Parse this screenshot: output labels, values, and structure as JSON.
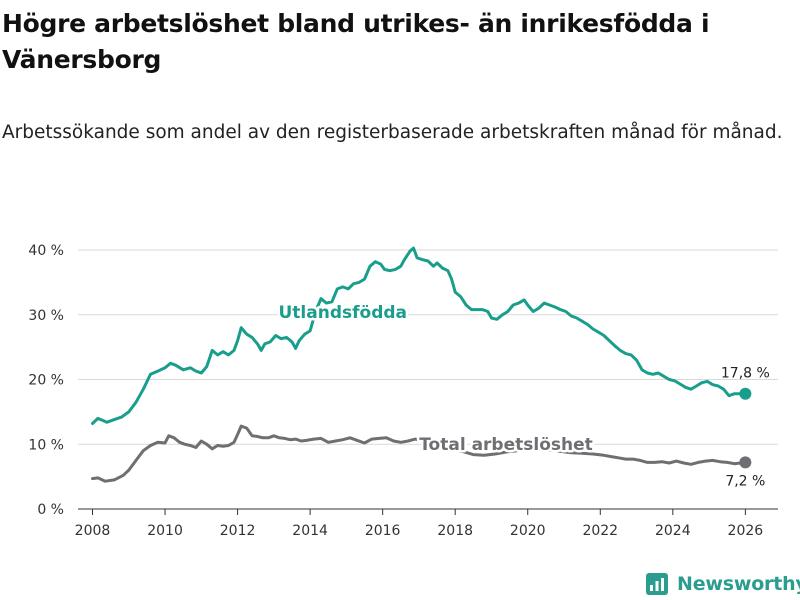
{
  "header": {
    "title": "Högre arbetslöshet bland utrikes- än inrikesfödda i Vänersborg",
    "subtitle": "Arbetssökande som andel av den registerbaserade arbetskraften månad för månad."
  },
  "brand": {
    "name": "Newsworthy",
    "icon": "newsworthy-logo-icon",
    "color": "#2a9d8f"
  },
  "chart_data": {
    "type": "line",
    "title": "Högre arbetslöshet bland utrikes- än inrikesfödda i Vänersborg",
    "subtitle": "Arbetssökande som andel av den registerbaserade arbetskraften månad för månad.",
    "xlabel": "",
    "ylabel": "",
    "xlim": [
      2007.6,
      2026.9
    ],
    "ylim": [
      0,
      40
    ],
    "grid": true,
    "y_ticks": [
      0,
      10,
      20,
      30,
      40
    ],
    "y_tick_labels": [
      "0 %",
      "10 %",
      "20 %",
      "30 %",
      "40 %"
    ],
    "x_ticks": [
      2008,
      2010,
      2012,
      2014,
      2016,
      2018,
      2020,
      2022,
      2024,
      2026
    ],
    "x_tick_labels": [
      "2008",
      "2010",
      "2012",
      "2014",
      "2016",
      "2018",
      "2020",
      "2022",
      "2024",
      "2026"
    ],
    "series": [
      {
        "name": "Utlandsfödda",
        "color": "#1a9e8c",
        "end_label": "17,8 %",
        "points": [
          [
            2008.0,
            13.2
          ],
          [
            2008.15,
            14.0
          ],
          [
            2008.4,
            13.4
          ],
          [
            2008.6,
            13.8
          ],
          [
            2008.8,
            14.2
          ],
          [
            2009.0,
            15.0
          ],
          [
            2009.2,
            16.5
          ],
          [
            2009.4,
            18.5
          ],
          [
            2009.6,
            20.8
          ],
          [
            2009.8,
            21.3
          ],
          [
            2010.0,
            21.8
          ],
          [
            2010.15,
            22.5
          ],
          [
            2010.3,
            22.2
          ],
          [
            2010.5,
            21.5
          ],
          [
            2010.7,
            21.8
          ],
          [
            2010.85,
            21.3
          ],
          [
            2011.0,
            21.0
          ],
          [
            2011.15,
            22.0
          ],
          [
            2011.3,
            24.5
          ],
          [
            2011.45,
            23.8
          ],
          [
            2011.6,
            24.3
          ],
          [
            2011.75,
            23.8
          ],
          [
            2011.9,
            24.5
          ],
          [
            2012.0,
            26.0
          ],
          [
            2012.1,
            28.0
          ],
          [
            2012.25,
            27.0
          ],
          [
            2012.4,
            26.5
          ],
          [
            2012.55,
            25.5
          ],
          [
            2012.65,
            24.5
          ],
          [
            2012.75,
            25.5
          ],
          [
            2012.9,
            25.8
          ],
          [
            2013.05,
            26.8
          ],
          [
            2013.2,
            26.3
          ],
          [
            2013.35,
            26.5
          ],
          [
            2013.5,
            25.8
          ],
          [
            2013.6,
            24.8
          ],
          [
            2013.7,
            26.0
          ],
          [
            2013.85,
            27.0
          ],
          [
            2014.0,
            27.5
          ],
          [
            2014.15,
            30.5
          ],
          [
            2014.3,
            32.5
          ],
          [
            2014.45,
            31.8
          ],
          [
            2014.6,
            32.0
          ],
          [
            2014.75,
            34.0
          ],
          [
            2014.9,
            34.3
          ],
          [
            2015.05,
            34.0
          ],
          [
            2015.2,
            34.8
          ],
          [
            2015.35,
            35.0
          ],
          [
            2015.5,
            35.5
          ],
          [
            2015.65,
            37.5
          ],
          [
            2015.8,
            38.2
          ],
          [
            2015.95,
            37.8
          ],
          [
            2016.05,
            37.0
          ],
          [
            2016.2,
            36.8
          ],
          [
            2016.35,
            37.0
          ],
          [
            2016.5,
            37.5
          ],
          [
            2016.6,
            38.5
          ],
          [
            2016.75,
            39.8
          ],
          [
            2016.85,
            40.3
          ],
          [
            2016.95,
            38.8
          ],
          [
            2017.1,
            38.5
          ],
          [
            2017.25,
            38.3
          ],
          [
            2017.4,
            37.5
          ],
          [
            2017.5,
            38.0
          ],
          [
            2017.65,
            37.2
          ],
          [
            2017.8,
            36.8
          ],
          [
            2017.9,
            35.5
          ],
          [
            2018.0,
            33.5
          ],
          [
            2018.15,
            32.8
          ],
          [
            2018.3,
            31.5
          ],
          [
            2018.45,
            30.8
          ],
          [
            2018.6,
            30.8
          ],
          [
            2018.75,
            30.8
          ],
          [
            2018.9,
            30.5
          ],
          [
            2019.0,
            29.5
          ],
          [
            2019.15,
            29.3
          ],
          [
            2019.3,
            30.0
          ],
          [
            2019.45,
            30.5
          ],
          [
            2019.6,
            31.5
          ],
          [
            2019.75,
            31.8
          ],
          [
            2019.9,
            32.3
          ],
          [
            2020.0,
            31.5
          ],
          [
            2020.15,
            30.5
          ],
          [
            2020.3,
            31.0
          ],
          [
            2020.45,
            31.8
          ],
          [
            2020.6,
            31.5
          ],
          [
            2020.75,
            31.2
          ],
          [
            2020.9,
            30.8
          ],
          [
            2021.05,
            30.5
          ],
          [
            2021.2,
            29.8
          ],
          [
            2021.35,
            29.5
          ],
          [
            2021.5,
            29.0
          ],
          [
            2021.65,
            28.5
          ],
          [
            2021.8,
            27.8
          ],
          [
            2021.95,
            27.3
          ],
          [
            2022.1,
            26.8
          ],
          [
            2022.25,
            26.0
          ],
          [
            2022.4,
            25.2
          ],
          [
            2022.55,
            24.5
          ],
          [
            2022.7,
            24.0
          ],
          [
            2022.85,
            23.8
          ],
          [
            2023.0,
            23.0
          ],
          [
            2023.15,
            21.5
          ],
          [
            2023.3,
            21.0
          ],
          [
            2023.45,
            20.8
          ],
          [
            2023.6,
            21.0
          ],
          [
            2023.75,
            20.5
          ],
          [
            2023.9,
            20.0
          ],
          [
            2024.05,
            19.8
          ],
          [
            2024.2,
            19.3
          ],
          [
            2024.35,
            18.8
          ],
          [
            2024.5,
            18.5
          ],
          [
            2024.65,
            19.0
          ],
          [
            2024.8,
            19.5
          ],
          [
            2024.95,
            19.7
          ],
          [
            2025.1,
            19.2
          ],
          [
            2025.25,
            19.0
          ],
          [
            2025.4,
            18.5
          ],
          [
            2025.55,
            17.5
          ],
          [
            2025.7,
            17.8
          ],
          [
            2026.0,
            17.8
          ]
        ]
      },
      {
        "name": "Total arbetslöshet",
        "color": "#6e6e73",
        "end_label": "7,2 %",
        "points": [
          [
            2008.0,
            4.7
          ],
          [
            2008.15,
            4.8
          ],
          [
            2008.35,
            4.3
          ],
          [
            2008.6,
            4.5
          ],
          [
            2008.85,
            5.2
          ],
          [
            2009.0,
            6.0
          ],
          [
            2009.2,
            7.5
          ],
          [
            2009.4,
            9.0
          ],
          [
            2009.6,
            9.8
          ],
          [
            2009.8,
            10.3
          ],
          [
            2010.0,
            10.2
          ],
          [
            2010.1,
            11.3
          ],
          [
            2010.25,
            11.0
          ],
          [
            2010.4,
            10.3
          ],
          [
            2010.55,
            10.0
          ],
          [
            2010.7,
            9.8
          ],
          [
            2010.85,
            9.5
          ],
          [
            2011.0,
            10.5
          ],
          [
            2011.15,
            10.0
          ],
          [
            2011.3,
            9.3
          ],
          [
            2011.45,
            9.8
          ],
          [
            2011.6,
            9.7
          ],
          [
            2011.75,
            9.8
          ],
          [
            2011.9,
            10.3
          ],
          [
            2012.0,
            11.5
          ],
          [
            2012.1,
            12.8
          ],
          [
            2012.25,
            12.5
          ],
          [
            2012.4,
            11.3
          ],
          [
            2012.55,
            11.2
          ],
          [
            2012.7,
            11.0
          ],
          [
            2012.85,
            11.0
          ],
          [
            2013.0,
            11.3
          ],
          [
            2013.15,
            11.0
          ],
          [
            2013.3,
            10.9
          ],
          [
            2013.45,
            10.7
          ],
          [
            2013.6,
            10.8
          ],
          [
            2013.75,
            10.5
          ],
          [
            2013.9,
            10.6
          ],
          [
            2014.1,
            10.8
          ],
          [
            2014.3,
            10.9
          ],
          [
            2014.5,
            10.3
          ],
          [
            2014.7,
            10.5
          ],
          [
            2014.9,
            10.7
          ],
          [
            2015.1,
            11.0
          ],
          [
            2015.3,
            10.6
          ],
          [
            2015.5,
            10.2
          ],
          [
            2015.7,
            10.8
          ],
          [
            2015.9,
            10.9
          ],
          [
            2016.1,
            11.0
          ],
          [
            2016.3,
            10.5
          ],
          [
            2016.5,
            10.3
          ],
          [
            2016.7,
            10.5
          ],
          [
            2016.9,
            10.8
          ],
          [
            2017.1,
            10.5
          ],
          [
            2017.3,
            10.0
          ],
          [
            2017.5,
            9.8
          ],
          [
            2017.7,
            9.5
          ],
          [
            2017.9,
            9.2
          ],
          [
            2018.2,
            8.9
          ],
          [
            2018.5,
            8.4
          ],
          [
            2018.8,
            8.3
          ],
          [
            2019.1,
            8.5
          ],
          [
            2019.4,
            8.8
          ],
          [
            2019.7,
            9.0
          ],
          [
            2020.0,
            9.2
          ],
          [
            2020.3,
            9.3
          ],
          [
            2020.6,
            9.1
          ],
          [
            2020.9,
            8.9
          ],
          [
            2021.2,
            8.7
          ],
          [
            2021.5,
            8.6
          ],
          [
            2021.8,
            8.5
          ],
          [
            2022.1,
            8.3
          ],
          [
            2022.3,
            8.1
          ],
          [
            2022.5,
            7.9
          ],
          [
            2022.7,
            7.7
          ],
          [
            2022.9,
            7.7
          ],
          [
            2023.1,
            7.5
          ],
          [
            2023.3,
            7.2
          ],
          [
            2023.5,
            7.2
          ],
          [
            2023.7,
            7.3
          ],
          [
            2023.9,
            7.1
          ],
          [
            2024.1,
            7.4
          ],
          [
            2024.3,
            7.1
          ],
          [
            2024.5,
            6.9
          ],
          [
            2024.7,
            7.2
          ],
          [
            2024.9,
            7.4
          ],
          [
            2025.1,
            7.5
          ],
          [
            2025.3,
            7.3
          ],
          [
            2025.5,
            7.2
          ],
          [
            2025.7,
            7.0
          ],
          [
            2026.0,
            7.2
          ]
        ]
      }
    ],
    "annotations": [
      {
        "text": "Utlandsfödda",
        "series": 0,
        "at": [
          2014.9,
          29.5
        ]
      },
      {
        "text": "Total arbetslöshet",
        "series": 1,
        "at": [
          2019.4,
          9.1
        ]
      }
    ]
  }
}
